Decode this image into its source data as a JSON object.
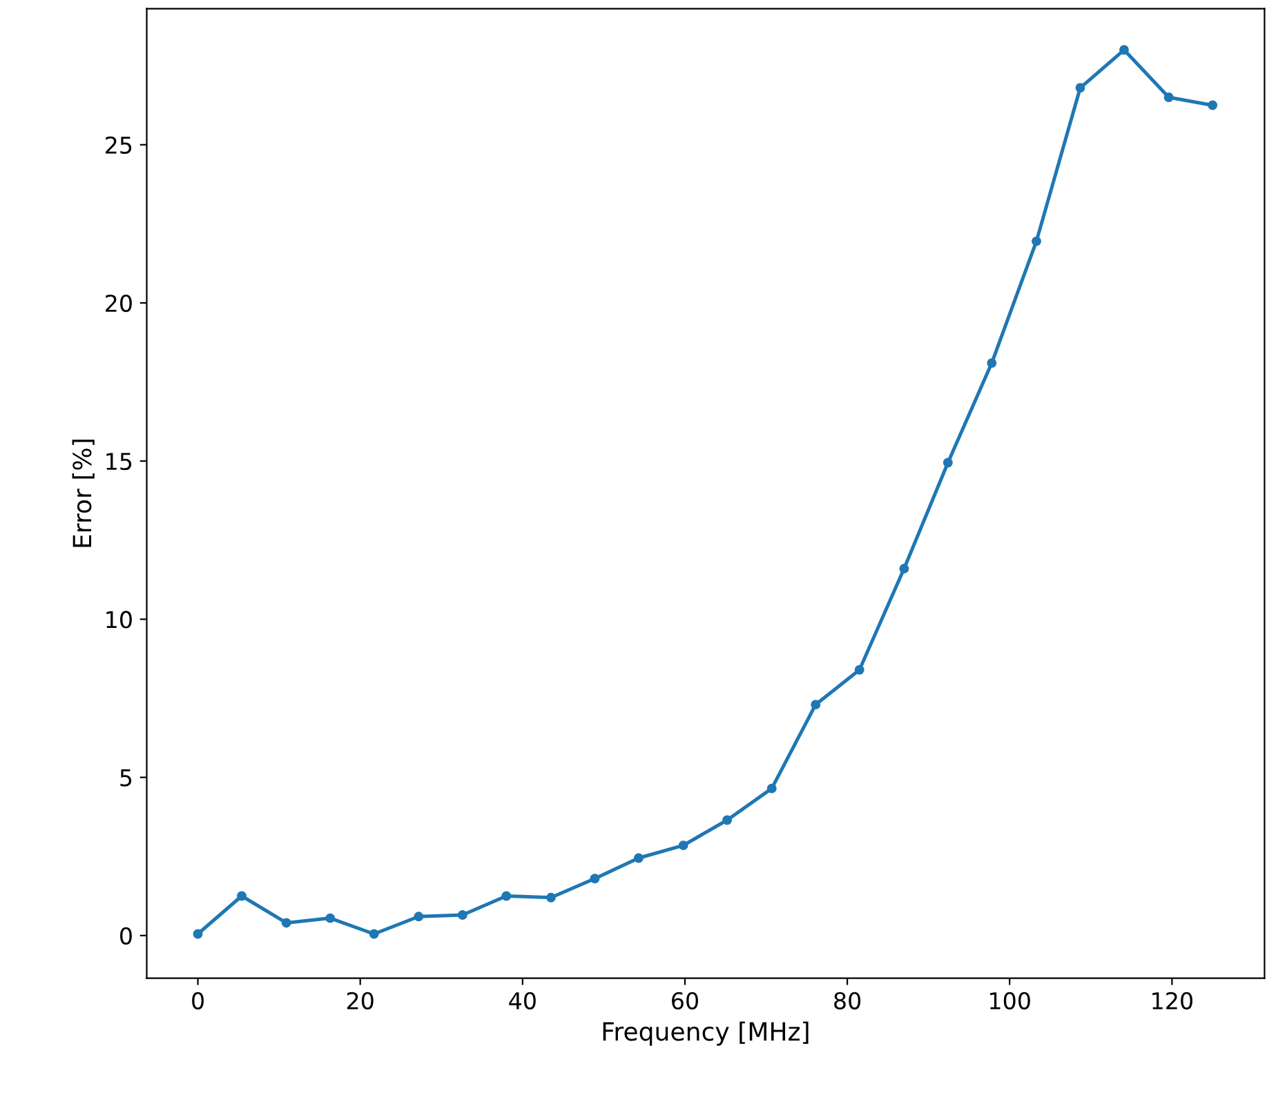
{
  "chart_data": {
    "type": "line",
    "xlabel": "Frequency [MHz]",
    "ylabel": "Error [%]",
    "x": [
      0,
      5.4,
      10.9,
      16.3,
      21.7,
      27.2,
      32.6,
      38.0,
      43.5,
      48.9,
      54.3,
      59.8,
      65.2,
      70.7,
      76.1,
      81.5,
      87.0,
      92.4,
      97.8,
      103.3,
      108.7,
      114.1,
      119.6,
      125.0
    ],
    "series": [
      {
        "color": "#1f77b4",
        "values": [
          0.05,
          1.25,
          0.4,
          0.55,
          0.05,
          0.6,
          0.65,
          1.25,
          1.2,
          1.8,
          2.45,
          2.85,
          3.65,
          4.65,
          7.3,
          8.4,
          11.6,
          14.95,
          18.1,
          21.95,
          26.8,
          28.0,
          26.5,
          26.25
        ]
      }
    ],
    "xlim": [
      -6.3,
      131.4
    ],
    "ylim": [
      -1.35,
      29.3
    ],
    "xticks": [
      0,
      20,
      40,
      60,
      80,
      100,
      120
    ],
    "yticks": [
      0,
      5,
      10,
      15,
      20,
      25
    ],
    "marker": "circle",
    "line_style": "solid",
    "grid": false
  }
}
